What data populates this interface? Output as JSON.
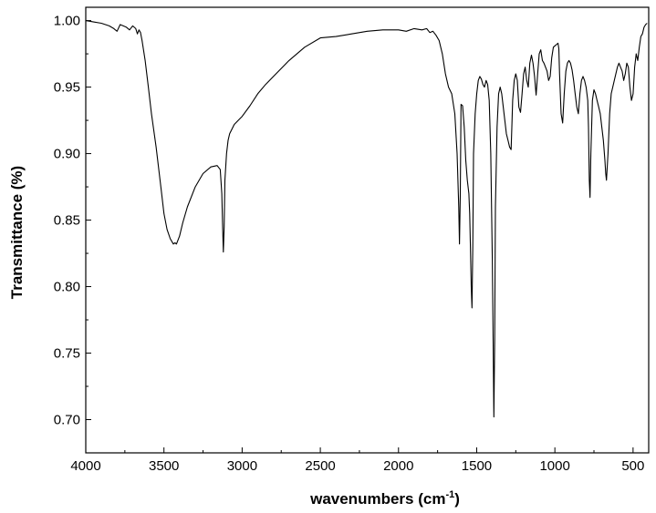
{
  "chart_data": {
    "type": "line",
    "title": "",
    "xlabel": "wavenumbers (cm",
    "xlabel_sup": "-1",
    "xlabel_end": ")",
    "ylabel": "Transmittance (%)",
    "xlim": [
      4000,
      400
    ],
    "ylim": [
      0.675,
      1.01
    ],
    "x_reversed": true,
    "grid": false,
    "legend": "none",
    "line_color": "#000000",
    "x_ticks": [
      4000,
      3500,
      3000,
      2500,
      2000,
      1500,
      1000,
      500
    ],
    "x_tick_labels": [
      "4000",
      "3500",
      "3000",
      "2500",
      "2000",
      "1500",
      "1000",
      "500"
    ],
    "y_ticks": [
      0.7,
      0.75,
      0.8,
      0.85,
      0.9,
      0.95,
      1.0
    ],
    "y_tick_labels": [
      "0.70",
      "0.75",
      "0.80",
      "0.85",
      "0.90",
      "0.95",
      "1.00"
    ],
    "series": [
      {
        "x": [
          4000,
          3950,
          3900,
          3850,
          3820,
          3800,
          3780,
          3760,
          3740,
          3720,
          3700,
          3680,
          3670,
          3660,
          3650,
          3640,
          3620,
          3600,
          3580,
          3550,
          3520,
          3500,
          3480,
          3460,
          3440,
          3430,
          3420,
          3400,
          3380,
          3350,
          3300,
          3250,
          3200,
          3160,
          3140,
          3130,
          3125,
          3120,
          3115,
          3110,
          3100,
          3090,
          3080,
          3050,
          3000,
          2950,
          2900,
          2850,
          2800,
          2700,
          2600,
          2500,
          2400,
          2300,
          2200,
          2100,
          2000,
          1950,
          1900,
          1850,
          1820,
          1800,
          1780,
          1760,
          1740,
          1720,
          1700,
          1680,
          1660,
          1640,
          1625,
          1615,
          1610,
          1605,
          1600,
          1590,
          1580,
          1570,
          1560,
          1550,
          1545,
          1540,
          1535,
          1530,
          1525,
          1520,
          1510,
          1500,
          1490,
          1480,
          1470,
          1460,
          1450,
          1440,
          1430,
          1420,
          1410,
          1400,
          1395,
          1390,
          1385,
          1380,
          1370,
          1360,
          1350,
          1340,
          1330,
          1320,
          1310,
          1300,
          1290,
          1280,
          1275,
          1270,
          1260,
          1250,
          1240,
          1230,
          1220,
          1210,
          1200,
          1190,
          1180,
          1170,
          1160,
          1150,
          1140,
          1130,
          1120,
          1110,
          1100,
          1090,
          1080,
          1070,
          1060,
          1050,
          1040,
          1030,
          1020,
          1010,
          1000,
          990,
          980,
          975,
          970,
          960,
          950,
          940,
          930,
          920,
          910,
          900,
          890,
          880,
          870,
          860,
          850,
          840,
          830,
          820,
          810,
          800,
          790,
          785,
          780,
          775,
          770,
          760,
          750,
          740,
          730,
          720,
          710,
          700,
          690,
          680,
          675,
          670,
          660,
          650,
          640,
          630,
          620,
          610,
          600,
          590,
          580,
          570,
          560,
          550,
          540,
          530,
          520,
          510,
          500,
          490,
          480,
          470,
          460,
          450,
          440,
          430,
          420,
          410
        ],
        "y": [
          1.0,
          0.999,
          0.998,
          0.996,
          0.994,
          0.992,
          0.997,
          0.996,
          0.995,
          0.993,
          0.996,
          0.994,
          0.99,
          0.993,
          0.991,
          0.985,
          0.97,
          0.95,
          0.93,
          0.905,
          0.875,
          0.855,
          0.843,
          0.836,
          0.832,
          0.833,
          0.832,
          0.838,
          0.848,
          0.86,
          0.875,
          0.885,
          0.89,
          0.891,
          0.888,
          0.87,
          0.845,
          0.826,
          0.845,
          0.88,
          0.9,
          0.91,
          0.915,
          0.922,
          0.928,
          0.936,
          0.945,
          0.952,
          0.958,
          0.97,
          0.98,
          0.987,
          0.988,
          0.99,
          0.992,
          0.993,
          0.993,
          0.992,
          0.994,
          0.993,
          0.994,
          0.991,
          0.992,
          0.989,
          0.985,
          0.975,
          0.96,
          0.95,
          0.945,
          0.93,
          0.9,
          0.86,
          0.832,
          0.87,
          0.937,
          0.936,
          0.92,
          0.895,
          0.88,
          0.87,
          0.855,
          0.83,
          0.8,
          0.784,
          0.83,
          0.9,
          0.93,
          0.945,
          0.955,
          0.958,
          0.956,
          0.952,
          0.95,
          0.955,
          0.952,
          0.94,
          0.9,
          0.82,
          0.76,
          0.702,
          0.76,
          0.86,
          0.92,
          0.945,
          0.95,
          0.945,
          0.935,
          0.925,
          0.915,
          0.91,
          0.905,
          0.903,
          0.92,
          0.94,
          0.955,
          0.96,
          0.955,
          0.935,
          0.931,
          0.945,
          0.96,
          0.965,
          0.955,
          0.95,
          0.968,
          0.974,
          0.968,
          0.958,
          0.944,
          0.96,
          0.975,
          0.978,
          0.97,
          0.968,
          0.965,
          0.962,
          0.955,
          0.958,
          0.972,
          0.98,
          0.981,
          0.982,
          0.983,
          0.979,
          0.96,
          0.93,
          0.923,
          0.945,
          0.962,
          0.968,
          0.97,
          0.968,
          0.963,
          0.955,
          0.945,
          0.935,
          0.93,
          0.945,
          0.955,
          0.958,
          0.955,
          0.95,
          0.94,
          0.92,
          0.88,
          0.867,
          0.9,
          0.94,
          0.948,
          0.945,
          0.94,
          0.935,
          0.93,
          0.92,
          0.91,
          0.895,
          0.885,
          0.88,
          0.9,
          0.93,
          0.945,
          0.95,
          0.955,
          0.96,
          0.965,
          0.968,
          0.965,
          0.962,
          0.955,
          0.96,
          0.968,
          0.965,
          0.95,
          0.94,
          0.945,
          0.965,
          0.975,
          0.97,
          0.98,
          0.988,
          0.99,
          0.995,
          0.997,
          0.998
        ]
      }
    ]
  }
}
